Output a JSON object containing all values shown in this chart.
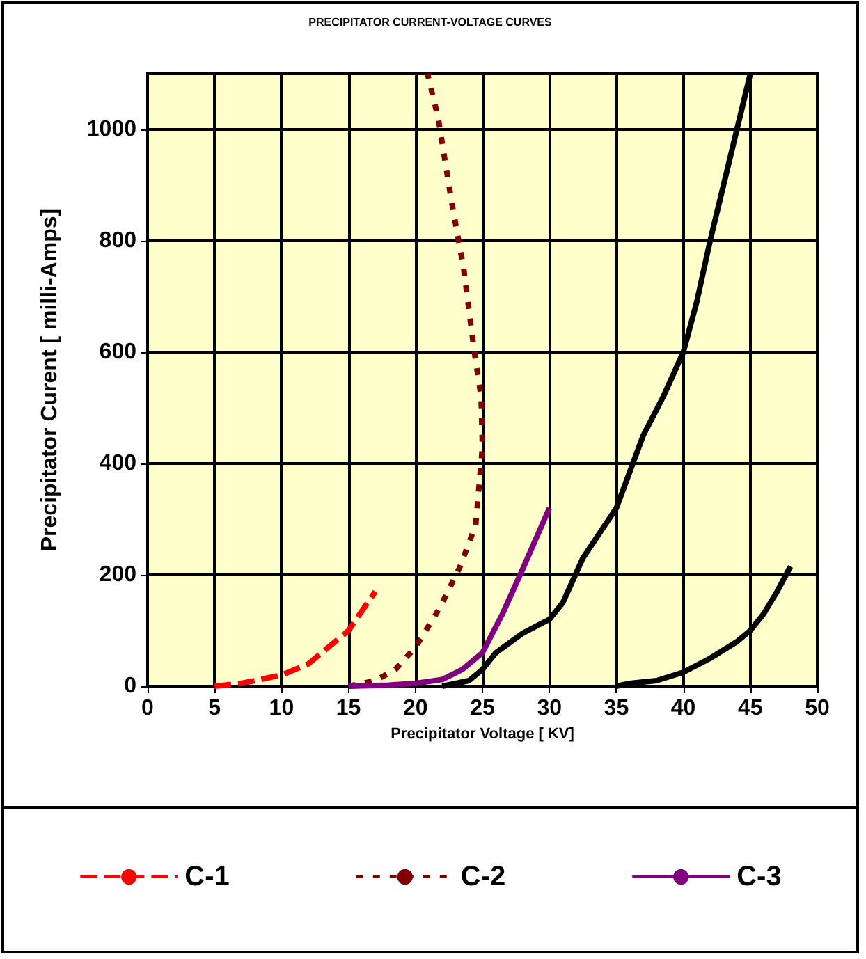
{
  "chart_data": {
    "type": "line",
    "title": "PRECIPITATOR CURRENT-VOLTAGE CURVES",
    "xlabel": "Precipitator Voltage [ KV]",
    "ylabel": "Precipitator Curent [ milli-Amps]",
    "xlim": [
      0,
      50
    ],
    "xticks": [
      0,
      5,
      10,
      15,
      20,
      25,
      30,
      35,
      40,
      45,
      50
    ],
    "ylim": [
      0,
      1100
    ],
    "yticks": [
      0,
      200,
      400,
      600,
      800,
      1000
    ],
    "grid": true,
    "legend": "bottom",
    "marker": "none",
    "series": [
      {
        "name": "C-1",
        "color": "#ff0000",
        "line_style": "dashed",
        "x": [
          5,
          7,
          10,
          12,
          15,
          17
        ],
        "values": [
          0,
          5,
          20,
          40,
          100,
          170
        ]
      },
      {
        "name": "C-2",
        "color": "#800000",
        "line_style": "dotted",
        "x": [
          15,
          17,
          18.5,
          20,
          21.8,
          23.3,
          24.5,
          25,
          24.9,
          24.4,
          23.6,
          22.7,
          21.7,
          20.9
        ],
        "values": [
          0,
          10,
          30,
          70,
          140,
          213,
          290,
          430,
          520,
          600,
          750,
          870,
          1020,
          1100
        ]
      },
      {
        "name": "C-3",
        "color": "#800080",
        "line_style": "solid",
        "x": [
          15,
          18,
          20,
          22,
          23.5,
          25,
          26.5,
          28,
          30
        ],
        "values": [
          0,
          2,
          5,
          12,
          30,
          60,
          130,
          210,
          320
        ]
      },
      {
        "color": "#000000",
        "line_style": "solid",
        "x": [
          22,
          24,
          25,
          26,
          28,
          30,
          31,
          32.5,
          35,
          37,
          38.5,
          40,
          41,
          42,
          43,
          44,
          45
        ],
        "values": [
          0,
          10,
          30,
          60,
          95,
          120,
          150,
          230,
          320,
          450,
          520,
          600,
          690,
          800,
          900,
          1000,
          1100
        ]
      },
      {
        "color": "#000000",
        "line_style": "solid",
        "x": [
          35,
          36,
          38,
          40,
          42,
          44,
          45,
          46,
          47,
          48
        ],
        "values": [
          0,
          5,
          10,
          25,
          50,
          80,
          100,
          130,
          170,
          215
        ]
      }
    ]
  }
}
